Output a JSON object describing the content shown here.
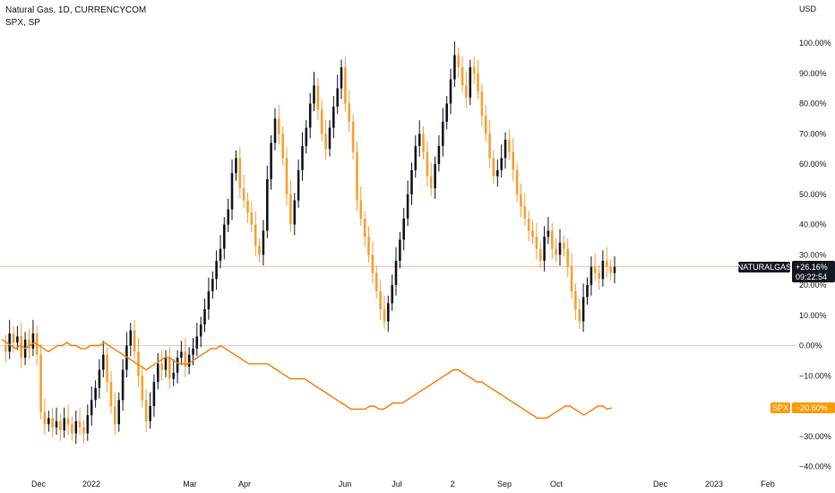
{
  "header": {
    "symbol_line": "Natural Gas, 1D, CURRENCYCOM",
    "compare_line": "SPX, SP"
  },
  "axis": {
    "currency": "USD",
    "y_ticks": [
      "100.00%",
      "90.00%",
      "80.00%",
      "70.00%",
      "60.00%",
      "50.00%",
      "40.00%",
      "30.00%",
      "20.00%",
      "10.00%",
      "0.00%",
      "−10.00%",
      "−20.00%",
      "−30.00%",
      "−40.00%"
    ],
    "x_ticks": [
      "Dec",
      "2022",
      "Mar",
      "Apr",
      "Jun",
      "Jul",
      "2",
      "Sep",
      "Oct",
      "Dec",
      "2023",
      "Feb"
    ]
  },
  "badges": {
    "natgas_name": "NATURALGAS",
    "natgas_value": "+26.16%",
    "countdown": "09:22:54",
    "spx_name": "SPX",
    "spx_value": "−20.60%"
  },
  "colors": {
    "up": "#131722",
    "down": "#f7a035",
    "spx_line": "#f57c00",
    "badge_dark": "#131722",
    "badge_orange": "#ff9800",
    "zero_line": "#d1d4dc",
    "price_line": "#f5b89a"
  },
  "chart_data": {
    "type": "line",
    "title": "Natural Gas, 1D, CURRENCYCOM",
    "y_unit": "%",
    "ylim": [
      -42,
      107
    ],
    "x_labels": [
      "Dec",
      "2022",
      "Mar",
      "Apr",
      "Jun",
      "Jul",
      "2",
      "Sep",
      "Oct",
      "Dec",
      "2023",
      "Feb"
    ],
    "series": [
      {
        "name": "Natural Gas",
        "style": "candles",
        "last": 26.16,
        "values": [
          0,
          -2,
          4,
          1,
          3,
          -4,
          2,
          -1,
          4,
          -3,
          -22,
          -26,
          -24,
          -27,
          -25,
          -28,
          -24,
          -26,
          -29,
          -25,
          -27,
          -29,
          -23,
          -18,
          -14,
          -8,
          -3,
          -12,
          -20,
          -26,
          -18,
          -8,
          0,
          5,
          -2,
          -10,
          -18,
          -25,
          -20,
          -12,
          -6,
          -8,
          -4,
          -11,
          -9,
          -4,
          -2,
          -7,
          -3,
          -1,
          3,
          7,
          12,
          18,
          22,
          28,
          32,
          40,
          45,
          57,
          62,
          52,
          48,
          44,
          40,
          33,
          30,
          38,
          55,
          67,
          75,
          70,
          62,
          50,
          40,
          48,
          58,
          66,
          72,
          80,
          86,
          78,
          70,
          65,
          72,
          79,
          85,
          92,
          80,
          74,
          64,
          48,
          42,
          36,
          30,
          24,
          18,
          12,
          8,
          14,
          20,
          28,
          35,
          42,
          50,
          58,
          66,
          70,
          64,
          56,
          52,
          60,
          66,
          74,
          80,
          88,
          96,
          92,
          86,
          82,
          92,
          90,
          84,
          76,
          70,
          62,
          56,
          58,
          62,
          68,
          64,
          58,
          50,
          46,
          42,
          38,
          36,
          32,
          28,
          36,
          38,
          32,
          30,
          34,
          32,
          26,
          18,
          12,
          8,
          16,
          20,
          26,
          24,
          22,
          28,
          26,
          24,
          26
        ],
        "color_up": "#131722",
        "color_down": "#f7a035"
      },
      {
        "name": "SPX",
        "style": "line",
        "last": -20.6,
        "values": [
          2,
          1,
          0,
          -1,
          0,
          -1,
          0,
          1,
          0,
          -1,
          -2,
          -1,
          0,
          0,
          1,
          0,
          0,
          -1,
          -1,
          0,
          0,
          0,
          1,
          0,
          -1,
          -2,
          -3,
          -4,
          -5,
          -6,
          -7,
          -8,
          -7,
          -6,
          -5,
          -4,
          -4,
          -5,
          -6,
          -6,
          -6,
          -5,
          -4,
          -3,
          -2,
          -1,
          -1,
          0,
          -1,
          -2,
          -3,
          -4,
          -5,
          -6,
          -6,
          -6,
          -6,
          -6,
          -7,
          -8,
          -9,
          -10,
          -11,
          -11,
          -11,
          -11,
          -12,
          -13,
          -14,
          -15,
          -16,
          -17,
          -18,
          -19,
          -20,
          -21,
          -21,
          -21,
          -21,
          -20,
          -20,
          -21,
          -21,
          -20,
          -19,
          -19,
          -19,
          -18,
          -17,
          -16,
          -15,
          -14,
          -13,
          -12,
          -11,
          -10,
          -9,
          -8,
          -8,
          -9,
          -10,
          -11,
          -12,
          -12,
          -13,
          -14,
          -15,
          -16,
          -17,
          -18,
          -19,
          -20,
          -21,
          -22,
          -23,
          -24,
          -24,
          -24,
          -23,
          -22,
          -21,
          -20,
          -20,
          -21,
          -22,
          -23,
          -22,
          -21,
          -20,
          -20,
          -21,
          -20.6
        ],
        "color": "#f57c00"
      }
    ]
  }
}
